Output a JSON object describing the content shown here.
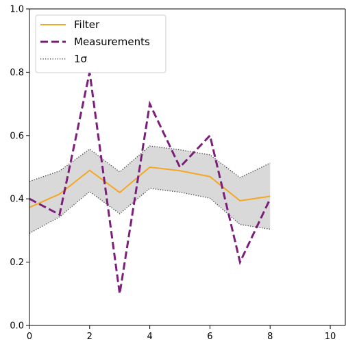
{
  "chart_data": {
    "type": "line",
    "title": "",
    "xlabel": "",
    "ylabel": "",
    "xlim": [
      0,
      10.5
    ],
    "ylim": [
      0.0,
      1.0
    ],
    "x_ticks": [
      0,
      2,
      4,
      6,
      8,
      10
    ],
    "y_ticks": [
      0.0,
      0.2,
      0.4,
      0.6,
      0.8,
      1.0
    ],
    "x_tick_labels": [
      "0",
      "2",
      "4",
      "6",
      "8",
      "10"
    ],
    "y_tick_labels": [
      "0.0",
      "0.2",
      "0.4",
      "0.6",
      "0.8",
      "1.0"
    ],
    "grid": false,
    "legend_position": "top-left",
    "x": [
      0,
      1,
      2,
      3,
      4,
      5,
      6,
      7,
      8
    ],
    "series": [
      {
        "name": "Filter",
        "style": "solid",
        "color": "#f5a623",
        "values": [
          0.373,
          0.415,
          0.49,
          0.42,
          0.5,
          0.489,
          0.47,
          0.394,
          0.408
        ]
      },
      {
        "name": "Measurements",
        "style": "dashed",
        "color": "#7b1f7b",
        "values": [
          0.4,
          0.35,
          0.8,
          0.1,
          0.7,
          0.5,
          0.6,
          0.2,
          0.4
        ]
      }
    ],
    "band": {
      "name": "1σ",
      "style": "dotted",
      "color": "#444444",
      "fill": "#d9d9d9",
      "upper": [
        0.455,
        0.488,
        0.557,
        0.485,
        0.567,
        0.555,
        0.539,
        0.467,
        0.513
      ],
      "lower": [
        0.291,
        0.343,
        0.423,
        0.353,
        0.433,
        0.421,
        0.402,
        0.319,
        0.304
      ]
    },
    "legend": {
      "entries": [
        "Filter",
        "Measurements",
        "1σ"
      ]
    }
  }
}
